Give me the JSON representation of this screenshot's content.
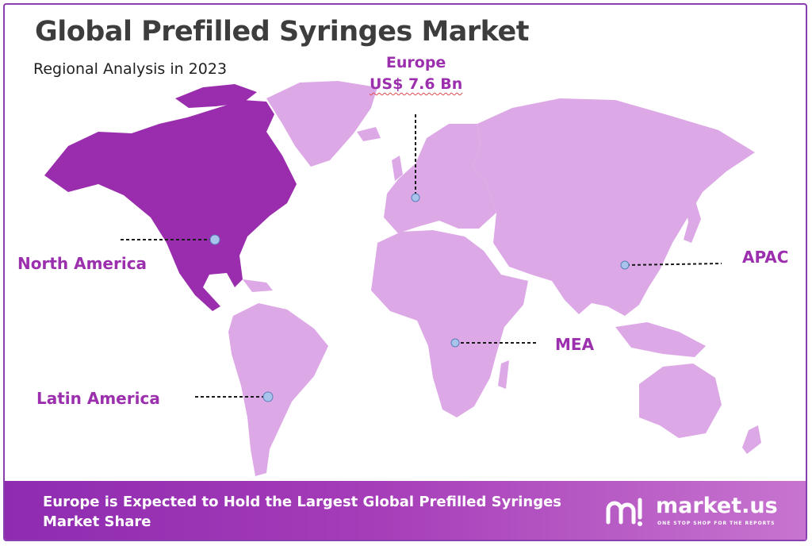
{
  "header": {
    "title": "Global Prefilled Syringes Market",
    "subtitle": "Regional Analysis in 2023"
  },
  "regions": {
    "europe": {
      "name": "Europe",
      "value": "US$ 7.6 Bn"
    },
    "north_america": {
      "name": "North America"
    },
    "apac": {
      "name": "APAC"
    },
    "mea": {
      "name": "MEA"
    },
    "latin_america": {
      "name": "Latin America"
    }
  },
  "footer": {
    "banner_text": "Europe is Expected to Hold the Largest Global Prefilled Syringes Market Share",
    "brand": "market.us",
    "tagline": "ONE STOP SHOP FOR THE REPORTS"
  },
  "colors": {
    "highlight_region": "#9a2dad",
    "other_regions": "#dca8e6",
    "label_text": "#9b2fae",
    "marker": "#a8c4ec"
  },
  "icons": {
    "logo": "market-us-logo-icon"
  }
}
